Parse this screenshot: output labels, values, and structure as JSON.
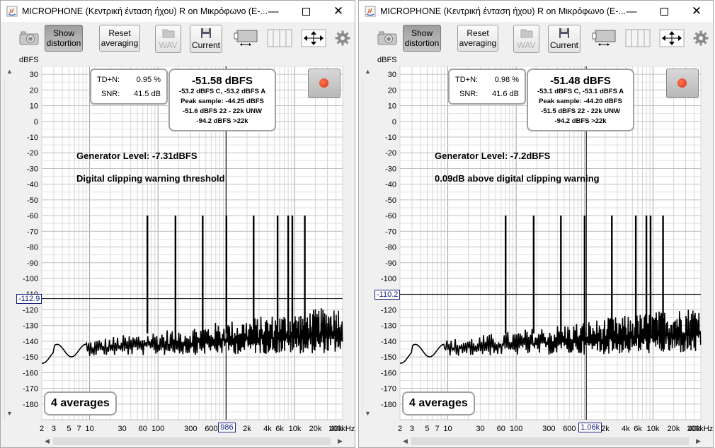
{
  "windows": [
    {
      "title": "MICROPHONE (Κεντρική ένταση ήχου) R on Μικρόφωνο (E-...",
      "toolbar": {
        "show_distortion": [
          "Show",
          "distortion"
        ],
        "reset_averaging": [
          "Reset",
          "averaging"
        ],
        "wav": "WAV",
        "current": "Current"
      },
      "y_unit": "dBFS",
      "stats": {
        "tdn_label": "TD+N:",
        "tdn_value": "0.95 %",
        "snr_label": "SNR:",
        "snr_value": "41.5 dB"
      },
      "level": {
        "main": "-51.58 dBFS",
        "line1": "-53.2 dBFS C, -53.2 dBFS A",
        "line2": "Peak sample: -44.25 dBFS",
        "line3": "-51.6 dBFS 22 - 22k UNW",
        "line4": "-94.2 dBFS >22k"
      },
      "annotation1": "Generator Level: -7.31dBFS",
      "annotation2": "Digital clipping warning threshold",
      "averages": "4 averages",
      "cursor_y": "-112.9",
      "cursor_x": "986",
      "cursor_x_hz": 986,
      "cursor_y_db": -112.9
    },
    {
      "title": "MICROPHONE (Κεντρική ένταση ήχου) R on Μικρόφωνο (E-...",
      "toolbar": {
        "show_distortion": [
          "Show",
          "distortion"
        ],
        "reset_averaging": [
          "Reset",
          "averaging"
        ],
        "wav": "WAV",
        "current": "Current"
      },
      "y_unit": "dBFS",
      "stats": {
        "tdn_label": "TD+N:",
        "tdn_value": "0.98 %",
        "snr_label": "SNR:",
        "snr_value": "41.6 dB"
      },
      "level": {
        "main": "-51.48 dBFS",
        "line1": "-53.1 dBFS C, -53.1 dBFS A",
        "line2": "Peak sample: -44.20 dBFS",
        "line3": "-51.5 dBFS 22 - 22k UNW",
        "line4": "-94.2 dBFS >22k"
      },
      "annotation1": "Generator Level: -7.2dBFS",
      "annotation2": "0.09dB above digital clipping warning",
      "averages": "4 averages",
      "cursor_y": "-110.2",
      "cursor_x": "1.06k",
      "cursor_x_hz": 1060,
      "cursor_y_db": -110.2
    }
  ],
  "chart_data": {
    "type": "line",
    "title": "",
    "xlabel": "",
    "ylabel": "dBFS",
    "x_scale": "log",
    "xlim": [
      2,
      50000
    ],
    "ylim": [
      -190,
      35
    ],
    "y_ticks": [
      30,
      20,
      10,
      0,
      -10,
      -20,
      -30,
      -40,
      -50,
      -60,
      -70,
      -80,
      -90,
      -100,
      -110,
      -120,
      -130,
      -140,
      -150,
      -160,
      -170,
      -180
    ],
    "x_tick_labels": [
      {
        "hz": 2,
        "label": "2"
      },
      {
        "hz": 3,
        "label": "3"
      },
      {
        "hz": 5,
        "label": "5"
      },
      {
        "hz": 7,
        "label": "7"
      },
      {
        "hz": 10,
        "label": "10"
      },
      {
        "hz": 30,
        "label": "30"
      },
      {
        "hz": 60,
        "label": "60"
      },
      {
        "hz": 100,
        "label": "100"
      },
      {
        "hz": 300,
        "label": "300"
      },
      {
        "hz": 600,
        "label": "600"
      },
      {
        "hz": 2000,
        "label": "2k"
      },
      {
        "hz": 4000,
        "label": "4k"
      },
      {
        "hz": 6000,
        "label": "6k"
      },
      {
        "hz": 10000,
        "label": "10k"
      },
      {
        "hz": 20000,
        "label": "20k"
      },
      {
        "hz": 40000,
        "label": "40k"
      },
      {
        "hz": 100000,
        "label": "100kHz"
      }
    ],
    "grid": true,
    "peaks_hz": [
      70,
      180,
      450,
      1000,
      2500,
      5600,
      8000,
      9200,
      14000
    ],
    "peak_level_db": -60,
    "noise_floor_db": [
      -150,
      -130
    ]
  }
}
